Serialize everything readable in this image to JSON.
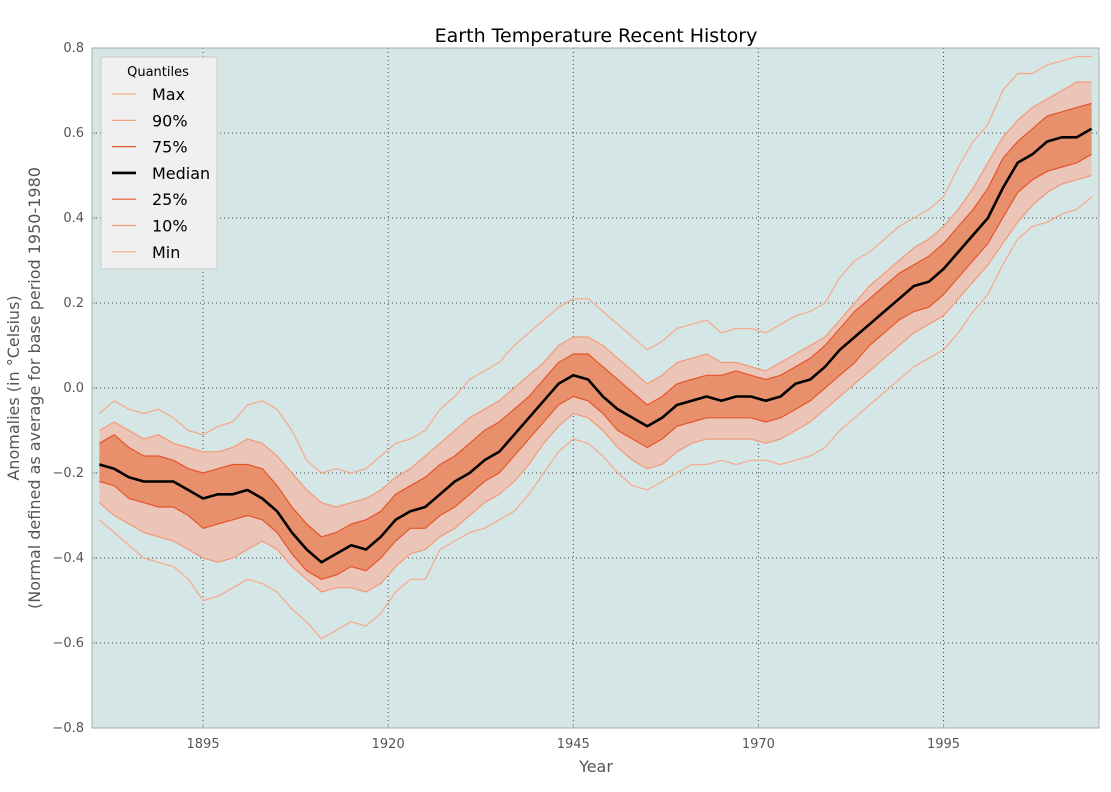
{
  "chart_data": {
    "type": "area",
    "title": "Earth Temperature Recent History",
    "xlabel": "Year",
    "ylabel_line1": "Anomalies (in °Celsius)",
    "ylabel_line2": "(Normal defined as average for base period 1950-1980",
    "xlim": [
      1880,
      2016
    ],
    "ylim": [
      -0.8,
      0.8
    ],
    "xticks": [
      1895,
      1920,
      1945,
      1970,
      1995
    ],
    "yticks": [
      -0.8,
      -0.6,
      -0.4,
      -0.2,
      0.0,
      0.2,
      0.4,
      0.6,
      0.8
    ],
    "ytick_labels": [
      "−0.8",
      "−0.6",
      "−0.4",
      "−0.2",
      "0.0",
      "0.2",
      "0.4",
      "0.6",
      "0.8"
    ],
    "grid": true,
    "legend": {
      "title": "Quantiles",
      "placement": "top-left",
      "entries": [
        "Max",
        "90%",
        "75%",
        "Median",
        "25%",
        "10%",
        "Min"
      ]
    },
    "colors": {
      "background": "#d5e6e6",
      "outer_band": "#ecc5b9",
      "inner_band": "#e8906b",
      "min_max_line": "#f8a98c",
      "quantile_10_90_line": "#f29a78",
      "quantile_25_75_line": "#e5552b",
      "median_line": "#000000",
      "grid": "#444444",
      "frame": "#aaaaaa"
    },
    "x": [
      1881,
      1883,
      1885,
      1887,
      1889,
      1891,
      1893,
      1895,
      1897,
      1899,
      1901,
      1903,
      1905,
      1907,
      1909,
      1911,
      1913,
      1915,
      1917,
      1919,
      1921,
      1923,
      1925,
      1927,
      1929,
      1931,
      1933,
      1935,
      1937,
      1939,
      1941,
      1943,
      1945,
      1947,
      1949,
      1951,
      1953,
      1955,
      1957,
      1959,
      1961,
      1963,
      1965,
      1967,
      1969,
      1971,
      1973,
      1975,
      1977,
      1979,
      1981,
      1983,
      1985,
      1987,
      1989,
      1991,
      1993,
      1995,
      1997,
      1999,
      2001,
      2003,
      2005,
      2007,
      2009,
      2011,
      2013,
      2015
    ],
    "series": [
      {
        "name": "Max",
        "values": [
          -0.06,
          -0.03,
          -0.05,
          -0.06,
          -0.05,
          -0.07,
          -0.1,
          -0.11,
          -0.09,
          -0.08,
          -0.04,
          -0.03,
          -0.05,
          -0.1,
          -0.17,
          -0.2,
          -0.19,
          -0.2,
          -0.19,
          -0.16,
          -0.13,
          -0.12,
          -0.1,
          -0.05,
          -0.02,
          0.02,
          0.04,
          0.06,
          0.1,
          0.13,
          0.16,
          0.19,
          0.21,
          0.21,
          0.18,
          0.15,
          0.12,
          0.09,
          0.11,
          0.14,
          0.15,
          0.16,
          0.13,
          0.14,
          0.14,
          0.13,
          0.15,
          0.17,
          0.18,
          0.2,
          0.26,
          0.3,
          0.32,
          0.35,
          0.38,
          0.4,
          0.42,
          0.45,
          0.52,
          0.58,
          0.62,
          0.7,
          0.74,
          0.74,
          0.76,
          0.77,
          0.78,
          0.78
        ]
      },
      {
        "name": "90%",
        "values": [
          -0.1,
          -0.08,
          -0.1,
          -0.12,
          -0.11,
          -0.13,
          -0.14,
          -0.15,
          -0.15,
          -0.14,
          -0.12,
          -0.13,
          -0.16,
          -0.2,
          -0.24,
          -0.27,
          -0.28,
          -0.27,
          -0.26,
          -0.24,
          -0.21,
          -0.19,
          -0.16,
          -0.13,
          -0.1,
          -0.07,
          -0.05,
          -0.03,
          0.0,
          0.03,
          0.06,
          0.1,
          0.12,
          0.12,
          0.1,
          0.07,
          0.04,
          0.01,
          0.03,
          0.06,
          0.07,
          0.08,
          0.06,
          0.06,
          0.05,
          0.04,
          0.06,
          0.08,
          0.1,
          0.12,
          0.16,
          0.2,
          0.24,
          0.27,
          0.3,
          0.33,
          0.35,
          0.38,
          0.42,
          0.47,
          0.53,
          0.59,
          0.63,
          0.66,
          0.68,
          0.7,
          0.72,
          0.72
        ]
      },
      {
        "name": "75%",
        "values": [
          -0.13,
          -0.11,
          -0.14,
          -0.16,
          -0.16,
          -0.17,
          -0.19,
          -0.2,
          -0.19,
          -0.18,
          -0.18,
          -0.19,
          -0.23,
          -0.28,
          -0.32,
          -0.35,
          -0.34,
          -0.32,
          -0.31,
          -0.29,
          -0.25,
          -0.23,
          -0.21,
          -0.18,
          -0.16,
          -0.13,
          -0.1,
          -0.08,
          -0.05,
          -0.02,
          0.02,
          0.06,
          0.08,
          0.08,
          0.05,
          0.02,
          -0.01,
          -0.04,
          -0.02,
          0.01,
          0.02,
          0.03,
          0.03,
          0.04,
          0.03,
          0.02,
          0.03,
          0.05,
          0.07,
          0.1,
          0.14,
          0.18,
          0.21,
          0.24,
          0.27,
          0.29,
          0.31,
          0.34,
          0.38,
          0.42,
          0.47,
          0.54,
          0.58,
          0.61,
          0.64,
          0.65,
          0.66,
          0.67
        ]
      },
      {
        "name": "Median",
        "values": [
          -0.18,
          -0.19,
          -0.21,
          -0.22,
          -0.22,
          -0.22,
          -0.24,
          -0.26,
          -0.25,
          -0.25,
          -0.24,
          -0.26,
          -0.29,
          -0.34,
          -0.38,
          -0.41,
          -0.39,
          -0.37,
          -0.38,
          -0.35,
          -0.31,
          -0.29,
          -0.28,
          -0.25,
          -0.22,
          -0.2,
          -0.17,
          -0.15,
          -0.11,
          -0.07,
          -0.03,
          0.01,
          0.03,
          0.02,
          -0.02,
          -0.05,
          -0.07,
          -0.09,
          -0.07,
          -0.04,
          -0.03,
          -0.02,
          -0.03,
          -0.02,
          -0.02,
          -0.03,
          -0.02,
          0.01,
          0.02,
          0.05,
          0.09,
          0.12,
          0.15,
          0.18,
          0.21,
          0.24,
          0.25,
          0.28,
          0.32,
          0.36,
          0.4,
          0.47,
          0.53,
          0.55,
          0.58,
          0.59,
          0.59,
          0.61
        ]
      },
      {
        "name": "25%",
        "values": [
          -0.22,
          -0.23,
          -0.26,
          -0.27,
          -0.28,
          -0.28,
          -0.3,
          -0.33,
          -0.32,
          -0.31,
          -0.3,
          -0.31,
          -0.34,
          -0.39,
          -0.43,
          -0.45,
          -0.44,
          -0.42,
          -0.43,
          -0.4,
          -0.36,
          -0.33,
          -0.33,
          -0.3,
          -0.28,
          -0.25,
          -0.22,
          -0.2,
          -0.16,
          -0.12,
          -0.08,
          -0.04,
          -0.02,
          -0.03,
          -0.06,
          -0.1,
          -0.12,
          -0.14,
          -0.12,
          -0.09,
          -0.08,
          -0.07,
          -0.07,
          -0.07,
          -0.07,
          -0.08,
          -0.07,
          -0.05,
          -0.03,
          0.0,
          0.03,
          0.06,
          0.1,
          0.13,
          0.16,
          0.18,
          0.19,
          0.22,
          0.26,
          0.3,
          0.34,
          0.4,
          0.46,
          0.49,
          0.51,
          0.52,
          0.53,
          0.55
        ]
      },
      {
        "name": "10%",
        "values": [
          -0.27,
          -0.3,
          -0.32,
          -0.34,
          -0.35,
          -0.36,
          -0.38,
          -0.4,
          -0.41,
          -0.4,
          -0.38,
          -0.36,
          -0.38,
          -0.42,
          -0.45,
          -0.48,
          -0.47,
          -0.47,
          -0.48,
          -0.46,
          -0.42,
          -0.39,
          -0.38,
          -0.35,
          -0.33,
          -0.3,
          -0.27,
          -0.25,
          -0.22,
          -0.18,
          -0.13,
          -0.09,
          -0.06,
          -0.07,
          -0.1,
          -0.14,
          -0.17,
          -0.19,
          -0.18,
          -0.15,
          -0.13,
          -0.12,
          -0.12,
          -0.12,
          -0.12,
          -0.13,
          -0.12,
          -0.1,
          -0.08,
          -0.05,
          -0.02,
          0.01,
          0.04,
          0.07,
          0.1,
          0.13,
          0.15,
          0.17,
          0.21,
          0.25,
          0.29,
          0.34,
          0.39,
          0.43,
          0.46,
          0.48,
          0.49,
          0.5
        ]
      },
      {
        "name": "Min",
        "values": [
          -0.31,
          -0.34,
          -0.37,
          -0.4,
          -0.41,
          -0.42,
          -0.45,
          -0.5,
          -0.49,
          -0.47,
          -0.45,
          -0.46,
          -0.48,
          -0.52,
          -0.55,
          -0.59,
          -0.57,
          -0.55,
          -0.56,
          -0.53,
          -0.48,
          -0.45,
          -0.45,
          -0.38,
          -0.36,
          -0.34,
          -0.33,
          -0.31,
          -0.29,
          -0.25,
          -0.2,
          -0.15,
          -0.12,
          -0.13,
          -0.16,
          -0.2,
          -0.23,
          -0.24,
          -0.22,
          -0.2,
          -0.18,
          -0.18,
          -0.17,
          -0.18,
          -0.17,
          -0.17,
          -0.18,
          -0.17,
          -0.16,
          -0.14,
          -0.1,
          -0.07,
          -0.04,
          -0.01,
          0.02,
          0.05,
          0.07,
          0.09,
          0.13,
          0.18,
          0.22,
          0.29,
          0.35,
          0.38,
          0.39,
          0.41,
          0.42,
          0.45
        ]
      }
    ]
  }
}
